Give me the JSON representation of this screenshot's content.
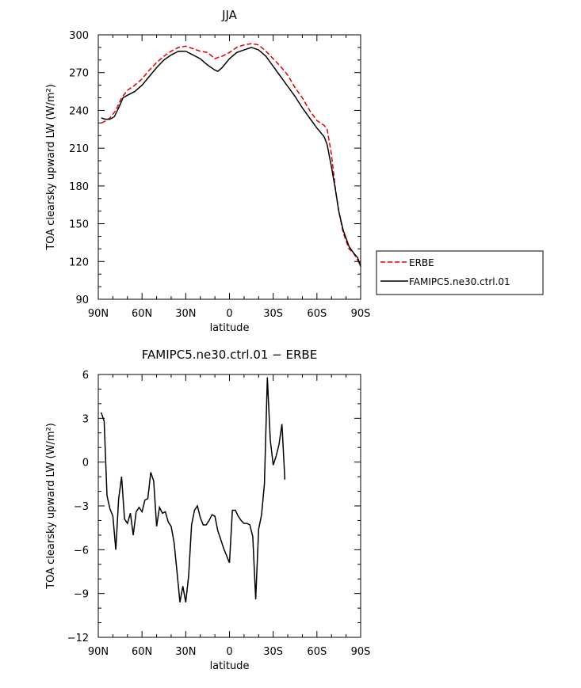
{
  "chart_data": [
    {
      "type": "line",
      "title": "JJA",
      "xlabel": "latitude",
      "ylabel": "TOA clearsky upward LW (W/m²)",
      "xlim": [
        -90,
        90
      ],
      "ylim": [
        90,
        300
      ],
      "xticks": [
        -90,
        -60,
        -30,
        0,
        30,
        60,
        90
      ],
      "xtick_labels": [
        "90N",
        "60N",
        "30N",
        "0",
        "30S",
        "60S",
        "90S"
      ],
      "yticks": [
        90,
        120,
        150,
        180,
        210,
        240,
        270,
        300
      ],
      "ytick_labels": [
        "90",
        "120",
        "150",
        "180",
        "210",
        "240",
        "270",
        "300"
      ],
      "legend_position": "right",
      "series": [
        {
          "name": "ERBE",
          "color": "#e00000",
          "dash": true,
          "points": [
            [
              -88,
              230
            ],
            [
              -86,
              231
            ],
            [
              -82,
              234
            ],
            [
              -78,
              240
            ],
            [
              -74,
              250
            ],
            [
              -70,
              256
            ],
            [
              -65,
              260
            ],
            [
              -60,
              265
            ],
            [
              -55,
              272
            ],
            [
              -50,
              278
            ],
            [
              -45,
              283
            ],
            [
              -40,
              287
            ],
            [
              -35,
              290
            ],
            [
              -30,
              291
            ],
            [
              -25,
              289
            ],
            [
              -20,
              287
            ],
            [
              -15,
              286
            ],
            [
              -12,
              283
            ],
            [
              -10,
              281
            ],
            [
              -8,
              282
            ],
            [
              -5,
              283
            ],
            [
              0,
              286
            ],
            [
              5,
              290
            ],
            [
              10,
              292
            ],
            [
              15,
              293
            ],
            [
              20,
              292
            ],
            [
              25,
              287
            ],
            [
              30,
              281
            ],
            [
              35,
              275
            ],
            [
              40,
              268
            ],
            [
              45,
              258
            ],
            [
              50,
              250
            ],
            [
              55,
              240
            ],
            [
              60,
              232
            ],
            [
              65,
              228
            ],
            [
              67,
              225
            ],
            [
              70,
              205
            ],
            [
              73,
              175
            ],
            [
              75,
              160
            ],
            [
              78,
              143
            ],
            [
              82,
              130
            ],
            [
              85,
              127
            ],
            [
              88,
              121
            ],
            [
              90,
              116
            ]
          ]
        },
        {
          "name": "FAMIPC5.ne30.ctrl.01",
          "color": "#000000",
          "dash": false,
          "points": [
            [
              -88,
              234
            ],
            [
              -85,
              233
            ],
            [
              -82,
              233
            ],
            [
              -79,
              235
            ],
            [
              -76,
              242
            ],
            [
              -73,
              250
            ],
            [
              -70,
              252
            ],
            [
              -65,
              255
            ],
            [
              -60,
              260
            ],
            [
              -55,
              267
            ],
            [
              -50,
              274
            ],
            [
              -45,
              280
            ],
            [
              -40,
              284
            ],
            [
              -35,
              287
            ],
            [
              -30,
              287
            ],
            [
              -25,
              284
            ],
            [
              -20,
              281
            ],
            [
              -15,
              276
            ],
            [
              -10,
              272
            ],
            [
              -8,
              271
            ],
            [
              -5,
              274
            ],
            [
              0,
              281
            ],
            [
              5,
              286
            ],
            [
              10,
              288
            ],
            [
              15,
              290
            ],
            [
              20,
              288
            ],
            [
              25,
              283
            ],
            [
              30,
              275
            ],
            [
              35,
              267
            ],
            [
              40,
              259
            ],
            [
              45,
              251
            ],
            [
              50,
              242
            ],
            [
              55,
              234
            ],
            [
              60,
              226
            ],
            [
              65,
              219
            ],
            [
              67,
              213
            ],
            [
              70,
              195
            ],
            [
              73,
              175
            ],
            [
              75,
              160
            ],
            [
              78,
              145
            ],
            [
              82,
              132
            ],
            [
              85,
              127
            ],
            [
              88,
              123
            ],
            [
              90,
              116
            ]
          ]
        }
      ]
    },
    {
      "type": "line",
      "title": "FAMIPC5.ne30.ctrl.01 − ERBE",
      "xlabel": "latitude",
      "ylabel": "TOA clearsky upward LW (W/m²)",
      "xlim": [
        -90,
        90
      ],
      "ylim": [
        -12,
        6
      ],
      "xticks": [
        -90,
        -60,
        -30,
        0,
        30,
        60,
        90
      ],
      "xtick_labels": [
        "90N",
        "60N",
        "30N",
        "0",
        "30S",
        "60S",
        "90S"
      ],
      "yticks": [
        -12,
        -9,
        -6,
        -3,
        0,
        3,
        6
      ],
      "ytick_labels": [
        "−12",
        "−9",
        "−6",
        "−3",
        "0",
        "3",
        "6"
      ],
      "series": [
        {
          "color": "#000000",
          "dash": false,
          "points": [
            [
              -88,
              3.4
            ],
            [
              -86,
              2.8
            ],
            [
              -84,
              -2.3
            ],
            [
              -82,
              -3.2
            ],
            [
              -80,
              -3.7
            ],
            [
              -78,
              -6.0
            ],
            [
              -76,
              -2.5
            ],
            [
              -74,
              -1.0
            ],
            [
              -72,
              -3.9
            ],
            [
              -70,
              -4.2
            ],
            [
              -68,
              -3.5
            ],
            [
              -66,
              -5.0
            ],
            [
              -64,
              -3.4
            ],
            [
              -62,
              -3.1
            ],
            [
              -60,
              -3.4
            ],
            [
              -58,
              -2.6
            ],
            [
              -56,
              -2.5
            ],
            [
              -54,
              -0.7
            ],
            [
              -52,
              -1.3
            ],
            [
              -50,
              -4.4
            ],
            [
              -48,
              -3.1
            ],
            [
              -46,
              -3.5
            ],
            [
              -44,
              -3.4
            ],
            [
              -42,
              -4.1
            ],
            [
              -40,
              -4.4
            ],
            [
              -38,
              -5.5
            ],
            [
              -36,
              -7.5
            ],
            [
              -34,
              -9.6
            ],
            [
              -32,
              -8.5
            ],
            [
              -30,
              -9.6
            ],
            [
              -28,
              -7.8
            ],
            [
              -26,
              -4.3
            ],
            [
              -24,
              -3.3
            ],
            [
              -22,
              -3.0
            ],
            [
              -20,
              -3.8
            ],
            [
              -18,
              -4.3
            ],
            [
              -16,
              -4.3
            ],
            [
              -14,
              -4.0
            ],
            [
              -12,
              -3.6
            ],
            [
              -10,
              -3.7
            ],
            [
              -8,
              -4.7
            ],
            [
              -6,
              -5.3
            ],
            [
              -4,
              -5.9
            ],
            [
              -2,
              -6.4
            ],
            [
              0,
              -6.9
            ],
            [
              2,
              -3.3
            ],
            [
              4,
              -3.3
            ],
            [
              6,
              -3.7
            ],
            [
              8,
              -4.0
            ],
            [
              10,
              -4.2
            ],
            [
              12,
              -4.2
            ],
            [
              14,
              -4.3
            ],
            [
              16,
              -5.1
            ],
            [
              18,
              -9.4
            ],
            [
              20,
              -4.6
            ],
            [
              22,
              -3.6
            ],
            [
              24,
              -1.5
            ],
            [
              26,
              5.8
            ],
            [
              28,
              1.5
            ],
            [
              30,
              -0.2
            ],
            [
              32,
              0.4
            ],
            [
              34,
              1.2
            ],
            [
              36,
              2.6
            ],
            [
              38,
              -1.2
            ]
          ]
        }
      ]
    }
  ]
}
